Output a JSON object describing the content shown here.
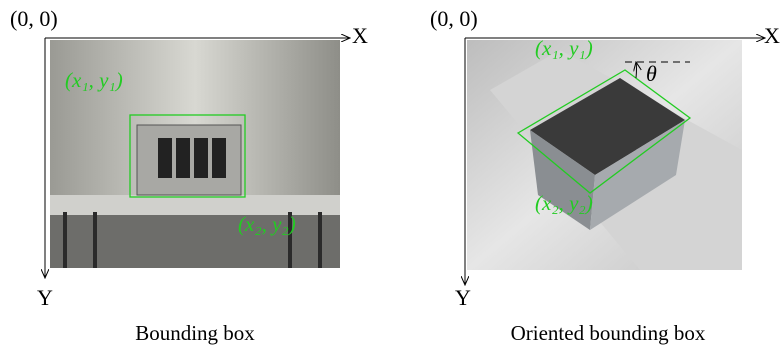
{
  "panels": [
    {
      "origin": "(0, 0)",
      "x_axis": "X",
      "y_axis": "Y",
      "corner1": "(x₁, y₁)",
      "corner2": "(x₂, y₂)",
      "caption": "Bounding box"
    },
    {
      "origin": "(0, 0)",
      "x_axis": "X",
      "y_axis": "Y",
      "corner1": "(x₁, y₁)",
      "corner2": "(x₂, y₂)",
      "angle": "θ",
      "caption": "Oriented bounding box"
    }
  ]
}
